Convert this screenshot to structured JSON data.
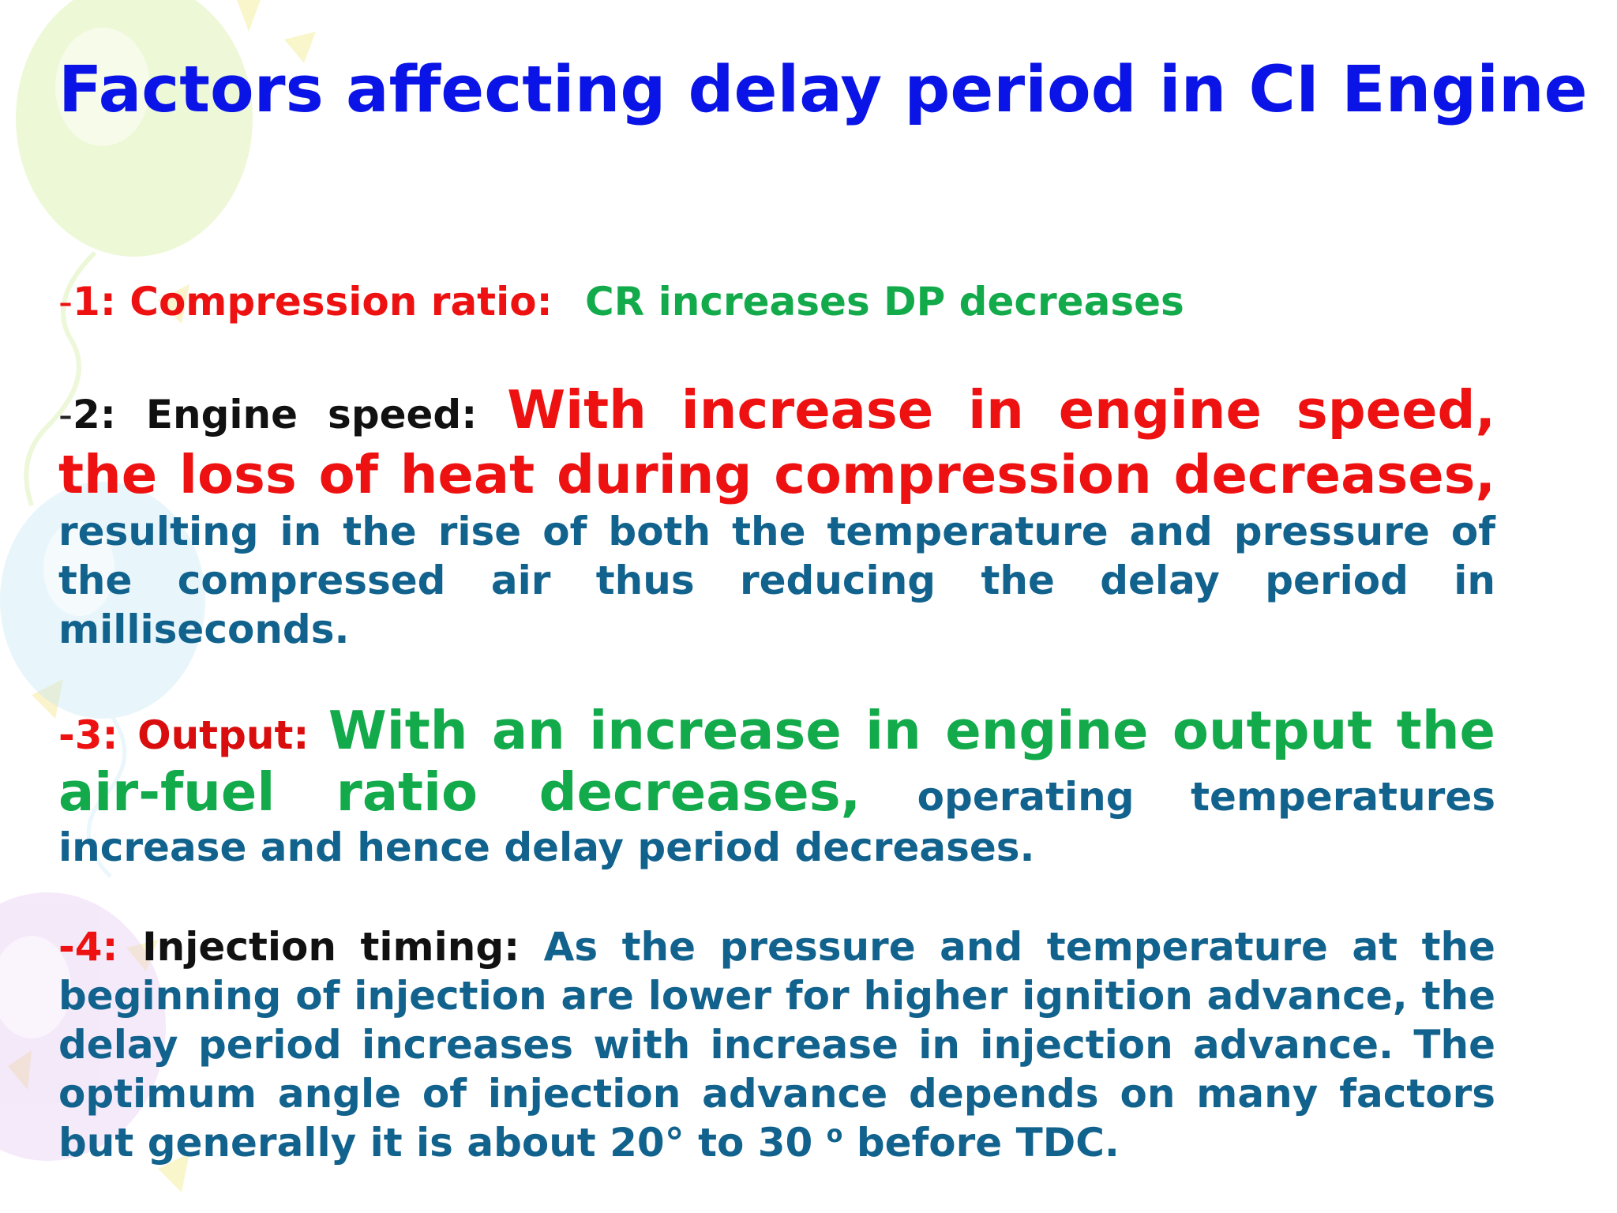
{
  "title": "Factors affecting delay period in CI Engine",
  "items": [
    {
      "dash": "-",
      "number": "1:",
      "heading": "Compression ratio:",
      "statement": "CR increases DP decreases"
    },
    {
      "dash": "-",
      "number": "2:",
      "heading": "Engine speed:",
      "emphasis": "With increase in engine speed, the loss of heat during compression decreases,",
      "detail": "resulting in the rise of both the temperature and pressure of the compressed air thus reducing the delay period in milliseconds."
    },
    {
      "number": "-3:",
      "heading": "Output:",
      "emphasis": "With an increase in engine output the air-fuel ratio decreases,",
      "detail": "operating temperatures increase and hence delay period decreases."
    },
    {
      "number": "-4:",
      "heading": "Injection timing:",
      "detail": "As the pressure and temperature at the beginning of injection are lower for higher ignition advance, the delay period increases with increase in injection advance. The optimum angle of injection advance depends on many factors but generally it is about 20° to 30",
      "degree_mark": "o",
      "detail_end": "before TDC."
    }
  ],
  "colors": {
    "title": "#0a14e6",
    "red": "#ee1111",
    "green": "#12aa4a",
    "teal": "#12628e",
    "black": "#111111"
  }
}
